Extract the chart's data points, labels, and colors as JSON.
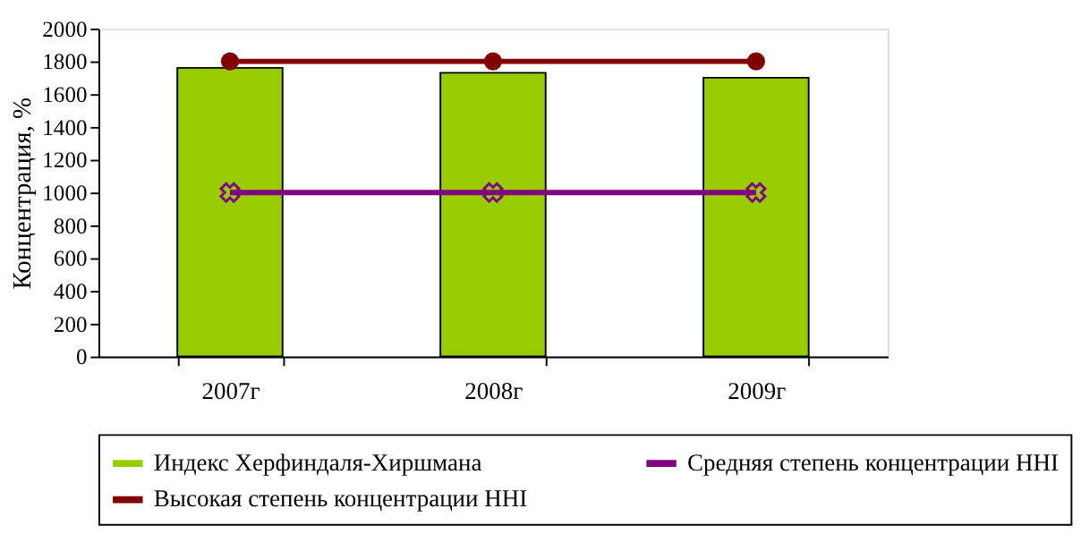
{
  "chart_data": {
    "type": "bar",
    "ylabel": "Концентрация, %",
    "categories": [
      "2007г",
      "2008г",
      "2009г"
    ],
    "series": [
      {
        "name": "Индекс Херфиндаля-Хиршмана",
        "color": "#99cc00",
        "values": [
          1760,
          1730,
          1700
        ]
      },
      {
        "name": "Средняя степень концентрации HHI",
        "type": "line",
        "marker": "cross",
        "color": "#800080",
        "values": [
          1000,
          1000,
          1000
        ]
      },
      {
        "name": "Высокая степень концентрации HHI",
        "type": "line",
        "marker": "circle",
        "color": "#800000",
        "values": [
          1800,
          1800,
          1800
        ]
      }
    ],
    "ylim": [
      0,
      2000
    ],
    "yticks": [
      0,
      200,
      400,
      600,
      800,
      1000,
      1200,
      1400,
      1600,
      1800,
      2000
    ],
    "grid": false,
    "legend": "bottom"
  }
}
